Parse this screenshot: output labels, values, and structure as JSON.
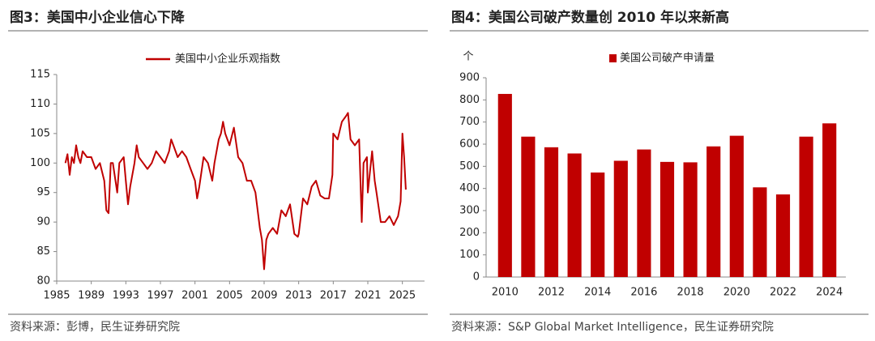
{
  "chart_data": [
    {
      "type": "line",
      "title": "图3：美国中小企业信心下降",
      "source": "资料来源：彭博，民生证券研究院",
      "x": [
        1986,
        1986.25,
        1986.5,
        1986.75,
        1987,
        1987.25,
        1987.5,
        1987.75,
        1988,
        1988.5,
        1989,
        1989.5,
        1990,
        1990.5,
        1990.75,
        1991,
        1991.25,
        1991.5,
        1992,
        1992.25,
        1992.75,
        1993,
        1993.25,
        1993.5,
        1994,
        1994.25,
        1994.5,
        1995,
        1995.5,
        1996,
        1996.5,
        1997,
        1997.5,
        1998,
        1998.25,
        1998.5,
        1999,
        1999.5,
        2000,
        2000.5,
        2001,
        2001.25,
        2001.5,
        2002,
        2002.5,
        2003,
        2003.25,
        2003.75,
        2004,
        2004.25,
        2004.5,
        2005,
        2005.5,
        2006,
        2006.5,
        2007,
        2007.5,
        2008,
        2008.5,
        2008.75,
        2009,
        2009.25,
        2009.5,
        2010,
        2010.5,
        2011,
        2011.5,
        2012,
        2012.5,
        2012.9,
        2013,
        2013.5,
        2014,
        2014.5,
        2015,
        2015.5,
        2016,
        2016.5,
        2016.9,
        2017,
        2017.5,
        2018,
        2018.5,
        2018.7,
        2019,
        2019.5,
        2020,
        2020.3,
        2020.5,
        2020.9,
        2021,
        2021.5,
        2021.8,
        2022,
        2022.5,
        2023,
        2023.5,
        2024,
        2024.5,
        2024.8,
        2025,
        2025.2,
        2025.4
      ],
      "series": [
        {
          "name": "美国中小企业乐观指数",
          "color": "#c00000",
          "values": [
            100,
            101.5,
            98,
            101,
            100,
            103,
            101,
            100,
            102,
            101,
            101,
            99,
            100,
            97,
            92,
            91.5,
            100,
            100,
            95,
            100,
            101,
            97,
            93,
            96,
            100,
            103,
            101,
            100,
            99,
            100,
            102,
            101,
            100,
            102,
            104,
            103,
            101,
            102,
            101,
            99,
            97,
            94,
            96,
            101,
            100,
            97,
            100,
            104,
            105,
            107,
            105,
            103,
            106,
            101,
            100,
            97,
            97,
            95,
            89,
            87,
            82,
            87,
            88,
            89,
            88,
            92,
            91,
            93,
            88,
            87.5,
            88,
            94,
            93,
            96,
            97,
            94.5,
            94,
            94,
            98,
            105,
            104,
            107,
            108,
            108.5,
            104,
            103,
            104,
            90,
            100,
            101,
            95,
            102,
            97,
            95,
            90,
            90,
            91,
            89.5,
            91,
            93.5,
            105,
            101,
            95.5
          ]
        }
      ],
      "xlim": [
        1985,
        2027
      ],
      "xticks": [
        1985,
        1989,
        1993,
        1997,
        2001,
        2005,
        2009,
        2013,
        2017,
        2021,
        2025
      ],
      "ylim": [
        80,
        115
      ],
      "yticks": [
        80,
        85,
        90,
        95,
        100,
        105,
        110,
        115
      ],
      "legend": "top"
    },
    {
      "type": "bar",
      "title": "图4：美国公司破产数量创 2010 年以来新高",
      "source": "资料来源：S&P Global Market Intelligence，民生证券研究院",
      "ylabel": "个",
      "categories": [
        "2010",
        null,
        "2012",
        null,
        "2014",
        null,
        "2016",
        null,
        "2018",
        null,
        "2020",
        null,
        "2022",
        null,
        "2024"
      ],
      "series": [
        {
          "name": "美国公司破产申请量",
          "color": "#c00000",
          "values": [
            827,
            634,
            586,
            558,
            472,
            525,
            576,
            520,
            518,
            590,
            638,
            405,
            373,
            634,
            694
          ]
        }
      ],
      "ylim": [
        0,
        900
      ],
      "yticks": [
        0,
        100,
        200,
        300,
        400,
        500,
        600,
        700,
        800,
        900
      ],
      "legend": "top"
    }
  ]
}
